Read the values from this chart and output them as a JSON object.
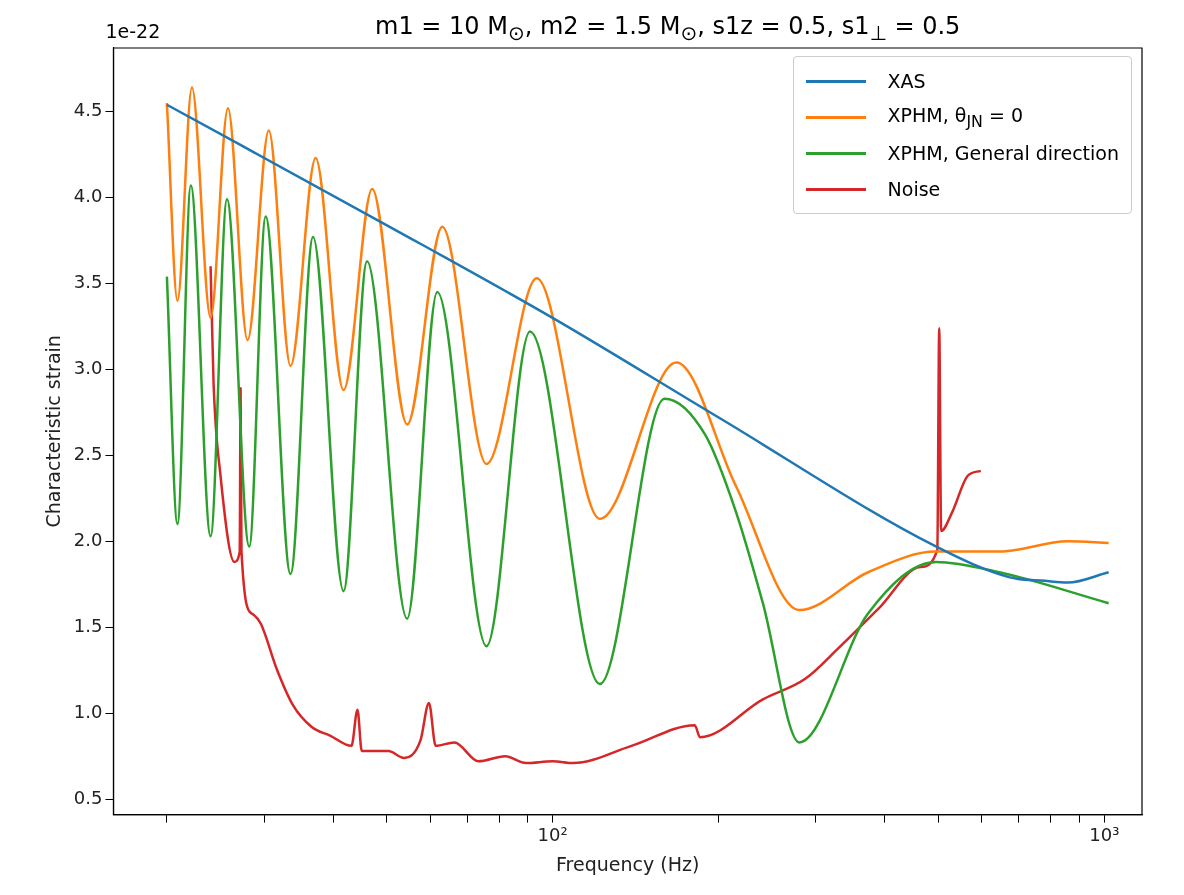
{
  "chart_data": {
    "type": "line",
    "title": "m1 = 10 M$_{⊙}$, m2 = 1.5 M$_{⊙}$, s1z = 0.5, s1$_{⊥}$ = 0.5",
    "xlabel": "Frequency (Hz)",
    "ylabel": "Characteristic strain",
    "annotations": [
      "1e-22"
    ],
    "log": "x",
    "grid": false,
    "legend": "top right",
    "marker": "none",
    "line_style": "solid",
    "xlim": [
      16,
      1170
    ],
    "ylim": [
      0.41,
      4.87
    ],
    "xticks": [
      {
        "value": 20,
        "label": null
      },
      {
        "value": 30,
        "label": null
      },
      {
        "value": 40,
        "label": null
      },
      {
        "value": 50,
        "label": null
      },
      {
        "value": 60,
        "label": null
      },
      {
        "value": 70,
        "label": null
      },
      {
        "value": 80,
        "label": null
      },
      {
        "value": 90,
        "label": null
      },
      {
        "value": 100,
        "label": "10²"
      },
      {
        "value": 200,
        "label": null
      },
      {
        "value": 300,
        "label": null
      },
      {
        "value": 400,
        "label": null
      },
      {
        "value": 500,
        "label": null
      },
      {
        "value": 600,
        "label": null
      },
      {
        "value": 700,
        "label": null
      },
      {
        "value": 800,
        "label": null
      },
      {
        "value": 900,
        "label": null
      },
      {
        "value": 1000,
        "label": "10³"
      }
    ],
    "yticks": [
      {
        "value": 0.5,
        "label": "0.5"
      },
      {
        "value": 1,
        "label": "1.0"
      },
      {
        "value": 1.5,
        "label": "1.5"
      },
      {
        "value": 2,
        "label": "2.0"
      },
      {
        "value": 2.5,
        "label": "2.5"
      },
      {
        "value": 3,
        "label": "3.0"
      },
      {
        "value": 3.5,
        "label": "3.5"
      },
      {
        "value": 4,
        "label": "4.0"
      },
      {
        "value": 4.5,
        "label": "4.5"
      }
    ],
    "series": [
      {
        "name": "XAS",
        "color": "#1f77b4",
        "x": [
          20,
          50,
          100,
          200,
          495,
          674,
          780,
          858,
          1018
        ],
        "values": [
          4.54,
          3.84,
          3.3,
          2.72,
          1.97,
          1.79,
          1.77,
          1.76,
          1.82
        ]
      },
      {
        "name": "XPHM, θ$_{JN}$ = 0",
        "color": "#ff7f0e",
        "x": [
          20,
          20.9,
          22.2,
          24.0,
          25.8,
          28.0,
          30.6,
          33.5,
          37.2,
          41.8,
          47.1,
          54.5,
          63.1,
          75.9,
          93.6,
          121.8,
          167.6,
          215,
          280,
          373,
          495,
          645,
          858,
          1018
        ],
        "values": [
          4.55,
          3.4,
          4.64,
          3.3,
          4.52,
          3.17,
          4.39,
          3.02,
          4.23,
          2.88,
          4.05,
          2.68,
          3.83,
          2.45,
          3.53,
          2.13,
          3.04,
          2.32,
          1.6,
          1.82,
          1.94,
          1.94,
          2.0,
          1.99
        ]
      },
      {
        "name": "XPHM, General direction",
        "color": "#2ca02c",
        "x": [
          20,
          20.9,
          22.1,
          24.0,
          25.7,
          28.2,
          30.2,
          33.5,
          36.8,
          41.8,
          46.1,
          54.5,
          61.8,
          75.9,
          91.0,
          121.8,
          159.5,
          189,
          215,
          240.5,
          280,
          373,
          495,
          645,
          1018
        ],
        "values": [
          3.54,
          2.1,
          4.07,
          2.03,
          3.99,
          1.97,
          3.89,
          1.81,
          3.77,
          1.71,
          3.63,
          1.55,
          3.45,
          1.39,
          3.22,
          1.17,
          2.83,
          2.62,
          2.17,
          1.64,
          0.83,
          1.58,
          1.88,
          1.82,
          1.64
        ]
      },
      {
        "name": "Noise",
        "color": "#d62728",
        "x": [
          24.0,
          24.3,
          25.0,
          26.5,
          27.1,
          27.2,
          27.3,
          28.5,
          29.6,
          31.6,
          33.8,
          36.6,
          39.5,
          43.2,
          44.3,
          45.1,
          50.4,
          53.8,
          57.6,
          59.7,
          61.4,
          66.4,
          73.4,
          82.0,
          89.5,
          100,
          109,
          139,
          181,
          185,
          240.5,
          287,
          330,
          390,
          464,
          498,
          502,
          506,
          530,
          565,
          597
        ],
        "values": [
          3.6,
          2.92,
          2.39,
          1.88,
          1.94,
          2.89,
          1.94,
          1.58,
          1.52,
          1.26,
          1.05,
          0.92,
          0.87,
          0.81,
          1.02,
          0.78,
          0.78,
          0.74,
          0.84,
          1.06,
          0.81,
          0.83,
          0.72,
          0.75,
          0.71,
          0.72,
          0.71,
          0.81,
          0.93,
          0.86,
          1.08,
          1.2,
          1.38,
          1.61,
          1.85,
          1.95,
          3.24,
          2.06,
          2.17,
          2.38,
          2.41
        ]
      }
    ]
  }
}
